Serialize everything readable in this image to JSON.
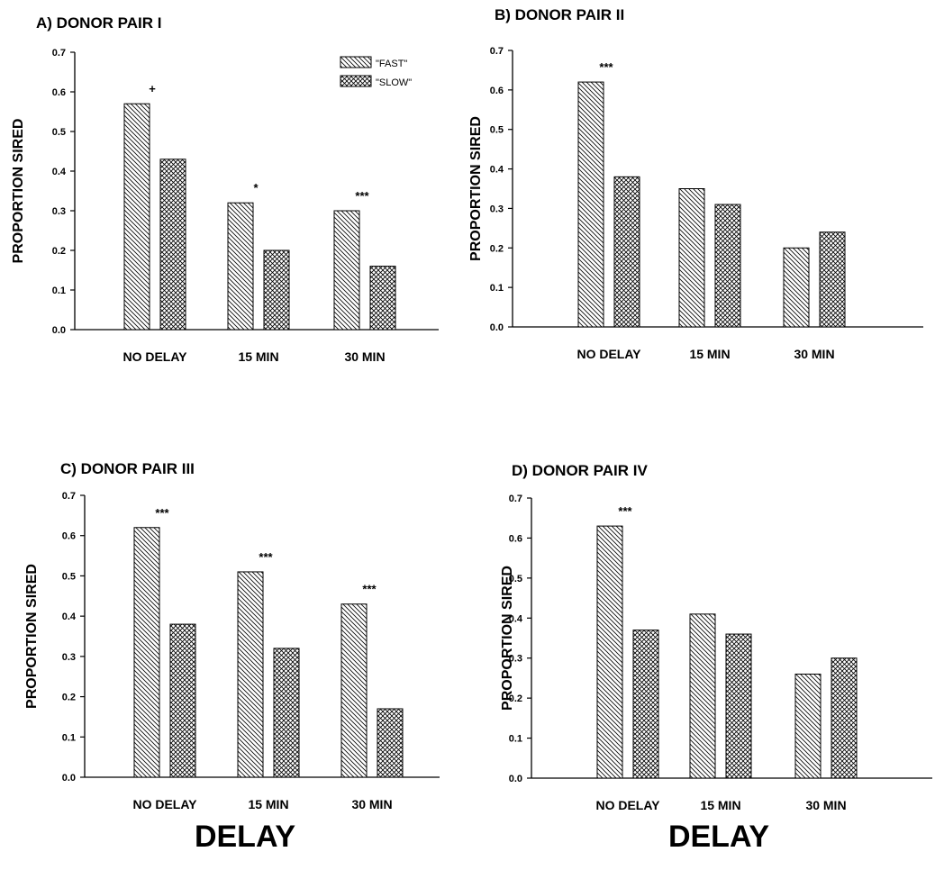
{
  "chart_data": [
    {
      "type": "bar",
      "title": "A) DONOR PAIR I",
      "ylabel": "PROPORTION SIRED",
      "xlabel": "",
      "categories": [
        "NO DELAY",
        "15 MIN",
        "30 MIN"
      ],
      "series": [
        {
          "name": "\"FAST\"",
          "values": [
            0.57,
            0.32,
            0.3
          ]
        },
        {
          "name": "\"SLOW\"",
          "values": [
            0.43,
            0.2,
            0.16
          ]
        }
      ],
      "significance": [
        "+",
        "*",
        "***"
      ],
      "yticks": [
        "0.0",
        "0.1",
        "0.2",
        "0.3",
        "0.4",
        "0.5",
        "0.6",
        "0.7"
      ],
      "ylim": [
        0,
        0.7
      ],
      "grid": false,
      "legend": "top-right"
    },
    {
      "type": "bar",
      "title": "B) DONOR PAIR II",
      "ylabel": "PROPORTION SIRED",
      "xlabel": "",
      "categories": [
        "NO DELAY",
        "15 MIN",
        "30 MIN"
      ],
      "series": [
        {
          "name": "\"FAST\"",
          "values": [
            0.62,
            0.35,
            0.2
          ]
        },
        {
          "name": "\"SLOW\"",
          "values": [
            0.38,
            0.31,
            0.24
          ]
        }
      ],
      "significance": [
        "***",
        "",
        ""
      ],
      "yticks": [
        "0.0",
        "0.1",
        "0.2",
        "0.3",
        "0.4",
        "0.5",
        "0.6",
        "0.7"
      ],
      "ylim": [
        0,
        0.7
      ],
      "grid": false
    },
    {
      "type": "bar",
      "title": "C) DONOR PAIR III",
      "ylabel": "PROPORTION SIRED",
      "xlabel": "DELAY",
      "categories": [
        "NO DELAY",
        "15 MIN",
        "30 MIN"
      ],
      "series": [
        {
          "name": "\"FAST\"",
          "values": [
            0.62,
            0.51,
            0.43
          ]
        },
        {
          "name": "\"SLOW\"",
          "values": [
            0.38,
            0.32,
            0.17
          ]
        }
      ],
      "significance": [
        "***",
        "***",
        "***"
      ],
      "yticks": [
        "0.0",
        "0.1",
        "0.2",
        "0.3",
        "0.4",
        "0.5",
        "0.6",
        "0.7"
      ],
      "ylim": [
        0,
        0.7
      ],
      "grid": false
    },
    {
      "type": "bar",
      "title": "D) DONOR PAIR IV",
      "ylabel": "PROPORTION SIRED",
      "xlabel": "DELAY",
      "categories": [
        "NO DELAY",
        "15 MIN",
        "30 MIN"
      ],
      "series": [
        {
          "name": "\"FAST\"",
          "values": [
            0.63,
            0.41,
            0.26
          ]
        },
        {
          "name": "\"SLOW\"",
          "values": [
            0.37,
            0.36,
            0.3
          ]
        }
      ],
      "significance": [
        "***",
        "",
        ""
      ],
      "yticks": [
        "0.0",
        "0.1",
        "0.2",
        "0.3",
        "0.4",
        "0.5",
        "0.6",
        "0.7"
      ],
      "ylim": [
        0,
        0.7
      ],
      "grid": false
    }
  ]
}
